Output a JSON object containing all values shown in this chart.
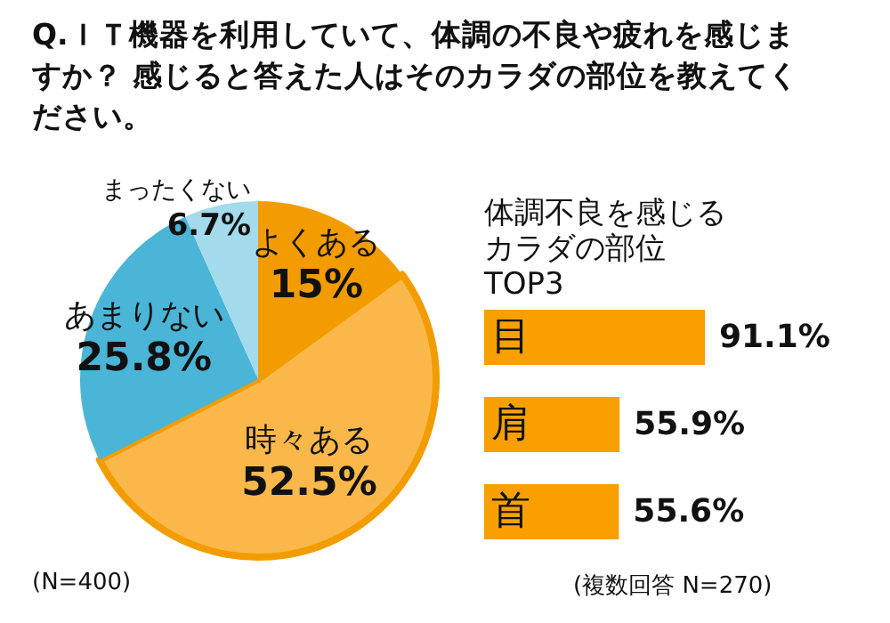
{
  "chart_data": [
    {
      "type": "pie",
      "title": "Q.ＩＴ機器を利用していて、体調の不良や疲れを感じますか？ 感じると答えた人はそのカラダの部位を教えてください。",
      "categories": [
        "よくある",
        "時々ある",
        "あまりない",
        "まったくない"
      ],
      "values": [
        15,
        52.5,
        25.8,
        6.7
      ],
      "value_labels": [
        "15%",
        "52.5%",
        "25.8%",
        "6.7%"
      ],
      "colors": [
        "#f39c00",
        "#fbb84a",
        "#4ab5d6",
        "#a3daec"
      ],
      "annotations": [
        "(N=400)"
      ]
    },
    {
      "type": "bar",
      "orientation": "horizontal",
      "title": "体調不良を感じるカラダの部位TOP3",
      "categories": [
        "目",
        "肩",
        "首"
      ],
      "values": [
        91.1,
        55.9,
        55.6
      ],
      "value_labels": [
        "91.1%",
        "55.9%",
        "55.6%"
      ],
      "color": "#f7a000",
      "annotations": [
        "(複数回答 N=270)"
      ]
    }
  ]
}
